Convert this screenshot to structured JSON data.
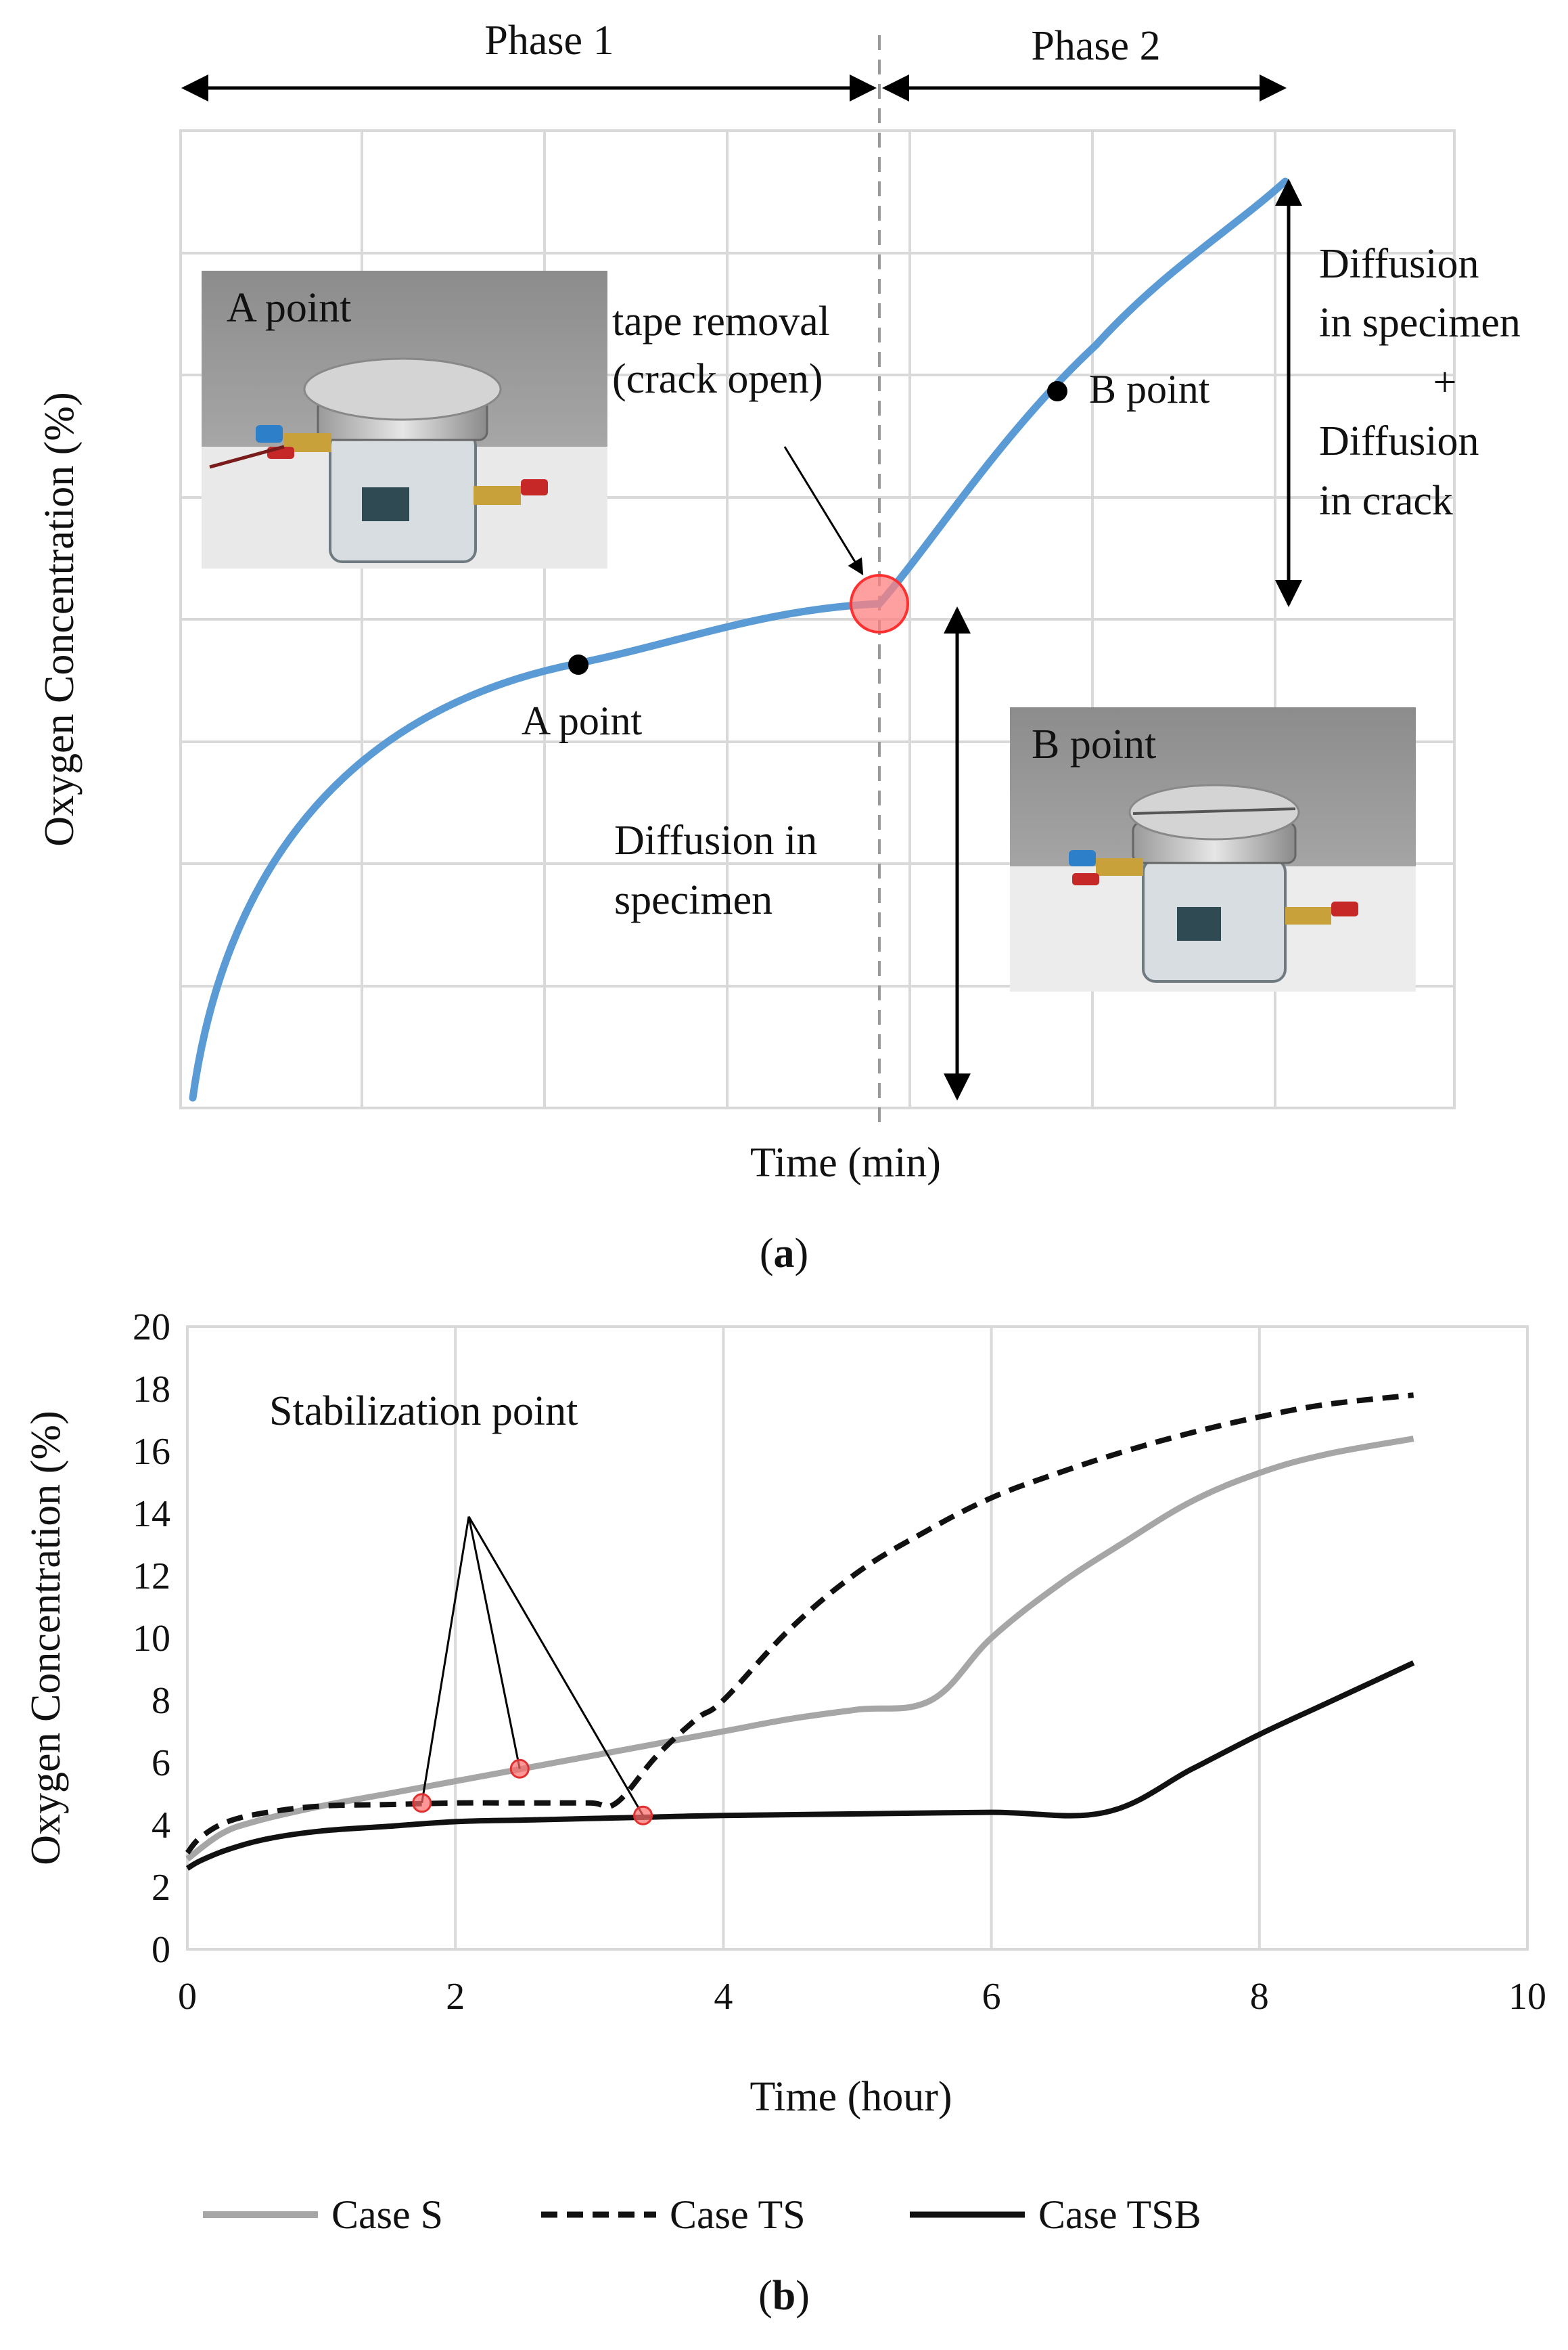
{
  "colors": {
    "curve_blue": "#5b9bd5",
    "case_s": "#a6a6a6",
    "case_ts": "#111111",
    "case_tsb": "#111111",
    "marker_red": "#ff6b6b",
    "grid": "#d9d9d9"
  },
  "panel_a": {
    "phase1_label": "Phase 1",
    "phase2_label": "Phase 2",
    "ylabel": "Oxygen Concentration (%)",
    "xlabel": "Time (min)",
    "caption_open": "(",
    "caption_letter": "a",
    "caption_close": ")",
    "tape_removal_line1": "tape removal",
    "tape_removal_line2": "(crack open)",
    "a_point_label": "A point",
    "b_point_label": "B point",
    "photo_a_label": "A point",
    "photo_b_label": "B point",
    "diffusion_specimen_line1": "Diffusion in",
    "diffusion_specimen_line2": "specimen",
    "right_annot_line1": "Diffusion",
    "right_annot_line2": "in specimen",
    "right_annot_line3": "+",
    "right_annot_line4": "Diffusion",
    "right_annot_line5": "in crack"
  },
  "chart_data": {
    "type": "line",
    "title": "",
    "xlabel": "Time (hour)",
    "ylabel": "Oxygen Concentration (%)",
    "xlim": [
      0,
      10
    ],
    "ylim": [
      0,
      20
    ],
    "xticks": [
      0,
      2,
      4,
      6,
      8,
      10
    ],
    "yticks": [
      0,
      2,
      4,
      6,
      8,
      10,
      12,
      14,
      16,
      18,
      20
    ],
    "grid": "vertical",
    "legend_position": "bottom",
    "annotation": "Stabilization point",
    "series": [
      {
        "name": "Case S",
        "style": "solid-gray",
        "x": [
          0,
          0.25,
          0.5,
          1,
          1.5,
          2,
          2.5,
          3,
          3.5,
          4,
          4.5,
          5,
          5.55,
          6,
          6.5,
          7,
          7.5,
          8,
          8.5,
          9.15
        ],
        "y": [
          2.9,
          3.7,
          4.1,
          4.6,
          5.0,
          5.4,
          5.8,
          6.2,
          6.6,
          7.0,
          7.4,
          7.7,
          8.0,
          10.0,
          11.7,
          13.1,
          14.4,
          15.3,
          15.9,
          16.4
        ]
      },
      {
        "name": "Case TS",
        "style": "dashed-black",
        "x": [
          0,
          0.1,
          0.3,
          0.6,
          1,
          1.5,
          2,
          2.5,
          3,
          3.2,
          3.5,
          3.8,
          4,
          4.5,
          5,
          5.5,
          6,
          6.5,
          7,
          7.5,
          8,
          8.5,
          9.15
        ],
        "y": [
          3.1,
          3.6,
          4.1,
          4.4,
          4.6,
          4.65,
          4.7,
          4.7,
          4.7,
          4.7,
          6.2,
          7.4,
          8.0,
          10.3,
          12.1,
          13.4,
          14.5,
          15.3,
          16.0,
          16.6,
          17.1,
          17.5,
          17.8
        ]
      },
      {
        "name": "Case TSB",
        "style": "solid-black",
        "x": [
          0,
          0.1,
          0.3,
          0.6,
          1,
          1.5,
          2,
          2.5,
          3,
          3.5,
          4,
          5,
          6,
          6.85,
          7.5,
          8,
          8.5,
          9.15
        ],
        "y": [
          2.6,
          2.85,
          3.2,
          3.55,
          3.8,
          3.95,
          4.1,
          4.15,
          4.2,
          4.25,
          4.3,
          4.35,
          4.4,
          4.4,
          5.8,
          6.9,
          7.9,
          9.2
        ]
      }
    ],
    "stabilization_points": [
      {
        "series": "Case TS",
        "x": 1.75,
        "y": 4.7
      },
      {
        "series": "Case S",
        "x": 2.48,
        "y": 5.8
      },
      {
        "series": "Case TSB",
        "x": 3.4,
        "y": 4.3
      }
    ],
    "annotation_apex": {
      "x": 2.1,
      "y": 13.9
    },
    "caption_open": "(",
    "caption_letter": "b",
    "caption_close": ")"
  }
}
